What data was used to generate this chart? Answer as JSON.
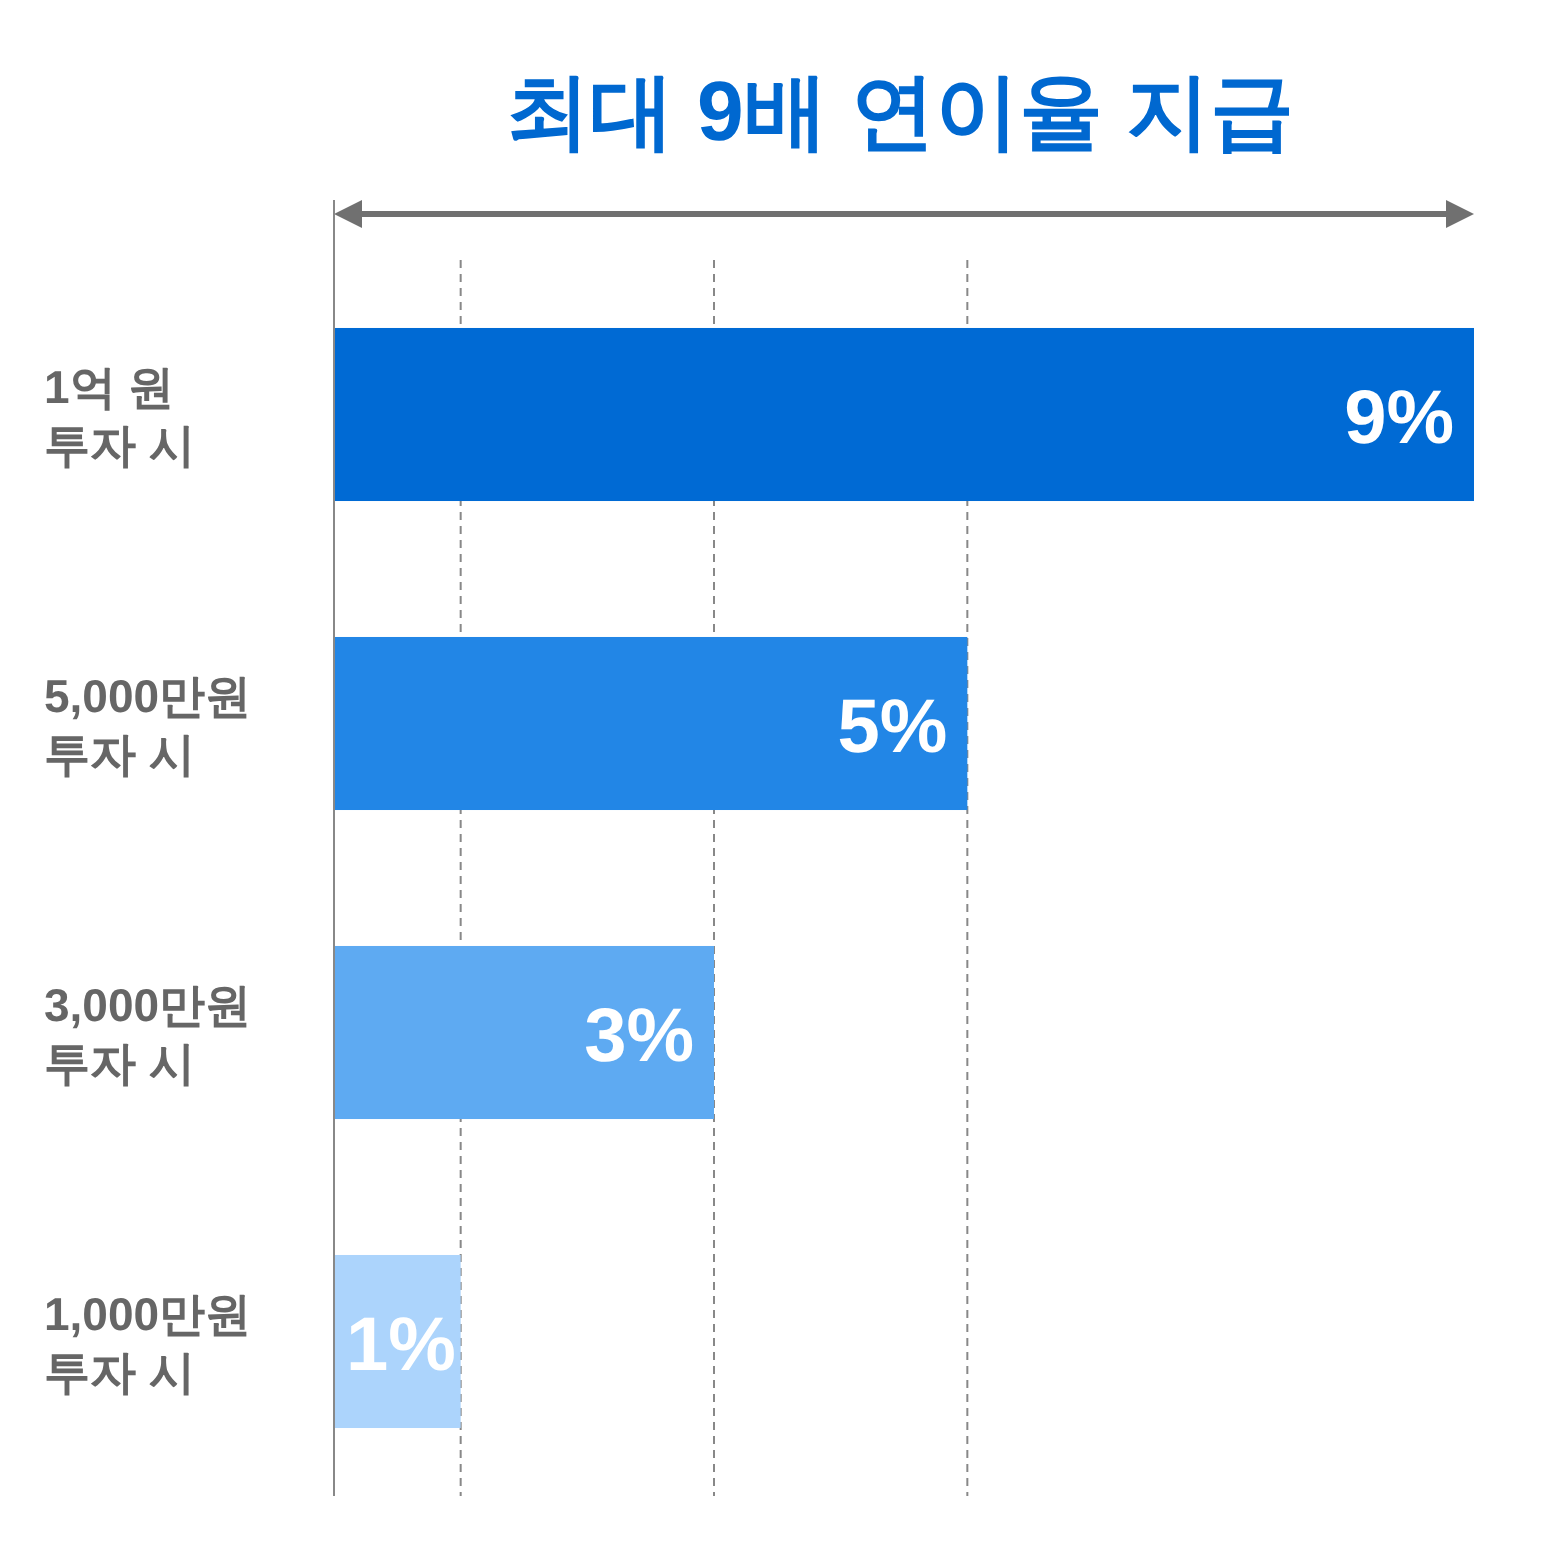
{
  "chart_data": {
    "type": "bar",
    "orientation": "horizontal",
    "title": "최대 9배 연이율 지급",
    "categories": [
      "1억 원\n투자 시",
      "5,000만원\n투자 시",
      "3,000만원\n투자 시",
      "1,000만원\n투자 시"
    ],
    "values": [
      9,
      5,
      3,
      1
    ],
    "colors": [
      "#006ad4",
      "#2286e6",
      "#5eaaf2",
      "#acd4fc"
    ],
    "value_labels": [
      "9%",
      "5%",
      "3%",
      "1%"
    ],
    "xlim": [
      0,
      9
    ],
    "tick_labels": "y",
    "ref_lines": [
      {
        "axis": "x",
        "value": 1,
        "color": "#888888",
        "line_style": "dashed"
      },
      {
        "axis": "x",
        "value": 3,
        "color": "#888888",
        "line_style": "dashed"
      },
      {
        "axis": "x",
        "value": 5,
        "color": "#888888",
        "line_style": "dashed"
      }
    ]
  }
}
